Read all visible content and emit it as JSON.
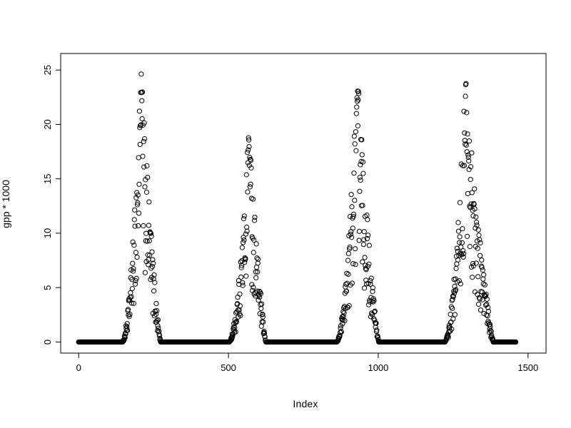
{
  "page": {
    "background": "#ffffff",
    "foreground": "#000000"
  },
  "chart_data": {
    "type": "scatter",
    "title": "",
    "xlabel": "Index",
    "ylabel": "gpp * 1000",
    "xlim": [
      0,
      1500
    ],
    "ylim": [
      0,
      25.5
    ],
    "x_ticks": [
      0,
      500,
      1000,
      1500
    ],
    "x_tick_labels": [
      "0",
      "500",
      "1000",
      "1500"
    ],
    "y_ticks": [
      0,
      5,
      10,
      15,
      20,
      25
    ],
    "y_tick_labels": [
      "0",
      "5",
      "10",
      "15",
      "20",
      "25"
    ],
    "grid": false,
    "legend": null,
    "marker": {
      "shape": "open-circle",
      "radius": 3.1,
      "stroke_width": 1,
      "color": "#000000"
    },
    "series_description": "Seasonal GPP time series: 1460 daily points (4 years), zero outside growing season, noisy peaks mid-season",
    "n_points": 1460,
    "period": 365,
    "seed": 1234,
    "baseline_value": 0,
    "seasons": [
      {
        "year": 1,
        "start_index": 0,
        "rise_start_doy": 145,
        "peak_doy": 208,
        "fall_end_doy": 274,
        "peak_value": 25.5
      },
      {
        "year": 2,
        "start_index": 365,
        "rise_start_doy": 136,
        "peak_doy": 203,
        "fall_end_doy": 260,
        "peak_value": 20.4
      },
      {
        "year": 3,
        "start_index": 730,
        "rise_start_doy": 130,
        "peak_doy": 200,
        "fall_end_doy": 272,
        "peak_value": 25.5
      },
      {
        "year": 4,
        "start_index": 1095,
        "rise_start_doy": 126,
        "peak_doy": 196,
        "fall_end_doy": 290,
        "peak_value": 24.5
      }
    ],
    "noise": {
      "min_factor": 0.3,
      "max_factor": 1.0,
      "near_peak_min_factor": 0.72
    }
  }
}
